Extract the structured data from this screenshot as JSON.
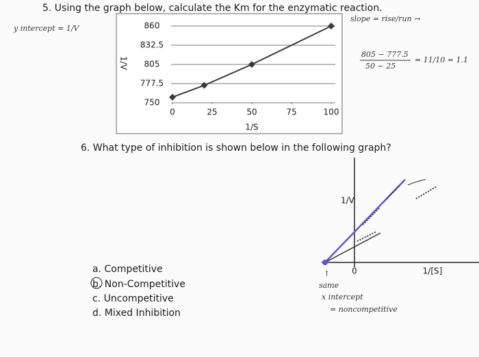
{
  "q5": {
    "text": "5. Using the graph below, calculate the Km for the enzymatic reaction.",
    "chart": {
      "type": "line",
      "y_label": "1/V",
      "x_label": "1/S",
      "x": [
        0,
        20,
        50,
        100
      ],
      "values": [
        758,
        775,
        805,
        860
      ],
      "color": "#3a3a3a",
      "xlim": [
        0,
        100
      ],
      "ylim": [
        750,
        860
      ],
      "xticks": [
        0,
        25,
        50,
        75,
        100
      ],
      "yticks": [
        750,
        777.5,
        805,
        832.5,
        860
      ],
      "grid": true
    },
    "notes": [
      "y intercept = 1/V",
      "slope = rise/run →",
      "805 − 777.5",
      "50 − 25",
      "= 11/10 = 1.1"
    ]
  },
  "q6": {
    "text": "6. What type of inhibition is shown below in the following graph?",
    "chart": {
      "y_label": "1/V",
      "x_label": "1/[S]",
      "origin_label": "0"
    },
    "options": [
      "a. Competitive",
      "b. Non-Competitive",
      "c. Uncompetitive",
      "d. Mixed Inhibition"
    ],
    "notes": [
      "↑",
      "same",
      "x intercept",
      "= noncompetitive"
    ]
  }
}
